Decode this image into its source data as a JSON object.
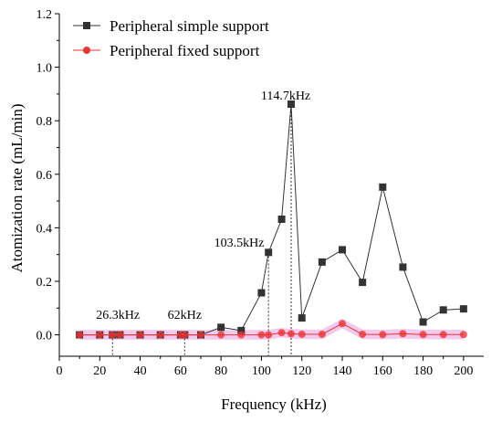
{
  "chart_data": {
    "type": "line",
    "xlabel": "Frequency (kHz)",
    "ylabel": "Atomization rate (mL/min)",
    "xlim": [
      0,
      210
    ],
    "ylim": [
      -0.08,
      1.2
    ],
    "xticks": [
      0,
      10,
      20,
      30,
      40,
      50,
      60,
      70,
      80,
      90,
      100,
      110,
      120,
      130,
      140,
      150,
      160,
      170,
      180,
      190,
      200
    ],
    "xtick_labels": [
      "0",
      "20",
      "40",
      "60",
      "80",
      "100",
      "120",
      "140",
      "160",
      "180",
      "200"
    ],
    "xtick_label_values": [
      0,
      20,
      40,
      60,
      80,
      100,
      120,
      140,
      160,
      180,
      200
    ],
    "yticks": [
      0.0,
      0.1,
      0.2,
      0.3,
      0.4,
      0.5,
      0.6,
      0.7,
      0.8,
      0.9,
      1.0,
      1.1,
      1.2
    ],
    "ytick_labels": [
      "0.0",
      "0.2",
      "0.4",
      "0.6",
      "0.8",
      "1.0",
      "1.2"
    ],
    "ytick_label_values": [
      0.0,
      0.2,
      0.4,
      0.6,
      0.8,
      1.0,
      1.2
    ],
    "legend_position": "top-left",
    "series": [
      {
        "name": "Peripheral simple support",
        "color": "#333333",
        "marker": "square",
        "x": [
          10,
          20,
          26.3,
          30,
          40,
          50,
          60,
          62,
          70,
          80,
          90,
          100,
          103.5,
          110,
          114.7,
          120,
          130,
          140,
          150,
          160,
          170,
          180,
          190,
          200
        ],
        "y": [
          0.0,
          0.0,
          0.0,
          0.0,
          0.0,
          0.0,
          0.0,
          0.0,
          0.0,
          0.028,
          0.016,
          0.157,
          0.308,
          0.432,
          0.862,
          0.063,
          0.272,
          0.318,
          0.196,
          0.552,
          0.253,
          0.048,
          0.093,
          0.097
        ]
      },
      {
        "name": "Peripheral fixed support",
        "color": "#ee3333",
        "marker": "circle",
        "x": [
          10,
          20,
          26.3,
          30,
          40,
          50,
          60,
          62,
          70,
          80,
          90,
          100,
          103.5,
          110,
          114.7,
          120,
          130,
          140,
          150,
          160,
          170,
          180,
          190,
          200
        ],
        "y": [
          0.0,
          0.0,
          0.0,
          0.0,
          0.0,
          0.0,
          0.0,
          0.0,
          0.0,
          0.0,
          0.0,
          0.0,
          0.0,
          0.008,
          0.004,
          0.002,
          0.002,
          0.042,
          0.002,
          0.001,
          0.004,
          0.001,
          0.001,
          0.001
        ]
      }
    ],
    "annotations": [
      {
        "text": "26.3kHz",
        "x": 26.3,
        "y": 0.0,
        "label_anchor_x": 29,
        "label_anchor_y": 0.06
      },
      {
        "text": "62kHz",
        "x": 62,
        "y": 0.0,
        "label_anchor_x": 62,
        "label_anchor_y": 0.06
      },
      {
        "text": "103.5kHz",
        "x": 103.5,
        "y": 0.308,
        "label_anchor_x": 89,
        "label_anchor_y": 0.33
      },
      {
        "text": "114.7kHz",
        "x": 114.7,
        "y": 0.862,
        "label_anchor_x": 112,
        "label_anchor_y": 0.88
      }
    ],
    "band": {
      "series": "Peripheral fixed support",
      "color": "#f3c9ee",
      "half_width": 0.018
    }
  }
}
